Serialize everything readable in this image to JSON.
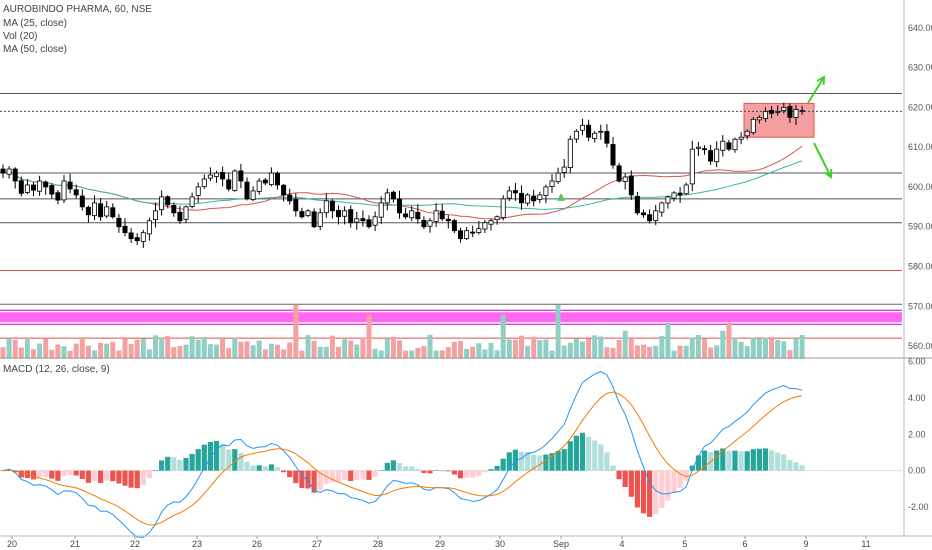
{
  "header": {
    "symbol_line": "AUROBINDO PHARMA, 60, NSE",
    "indicators": [
      "MA (25, close)",
      "Vol (20)",
      "MA (50, close)"
    ]
  },
  "macd": {
    "label": "MACD (12, 26, close, 9)"
  },
  "colors": {
    "up_candle": "#ffffff",
    "down_candle": "#000000",
    "ma25": "#d9534f",
    "ma50": "#3bb59d",
    "vol_up": "#8fcfc4",
    "vol_down": "#f4a1a1",
    "macd_line": "#2196f3",
    "signal_line": "#f57c00",
    "hist_pos_strong": "#26a69a",
    "hist_pos_weak": "#b2dfdb",
    "hist_neg_strong": "#ef5350",
    "hist_neg_weak": "#ffcdd2",
    "zone_box": "#f08080",
    "magenta_band": "#ff44ee",
    "arrow": "#3fd12a",
    "signal_marker": "#56c65a"
  },
  "chart_data": [
    {
      "type": "candlestick",
      "title": "AUROBINDO PHARMA, 60, NSE",
      "x_labels": [
        "20",
        "21",
        "22",
        "23",
        "26",
        "27",
        "28",
        "29",
        "30",
        "Sep",
        "4",
        "5",
        "6",
        "9",
        "11"
      ],
      "ylim": [
        557,
        647
      ],
      "y_ticks": [
        560,
        570,
        580,
        590,
        600,
        610,
        620,
        630,
        640
      ],
      "y_tick_labels": [
        "560.00",
        "570.00",
        "580.00",
        "590.00",
        "600.00",
        "610.00",
        "620.00",
        "630.00",
        "640.00"
      ],
      "closes": [
        603.5,
        604.5,
        601.5,
        598.4,
        600.5,
        599.2,
        601.5,
        600.0,
        598.2,
        596.7,
        601.5,
        599.5,
        598.0,
        595.0,
        593.0,
        596.0,
        592.5,
        595.0,
        592.5,
        590.0,
        588.5,
        587.0,
        586.5,
        588.5,
        591.5,
        594.0,
        597.5,
        595.5,
        593.5,
        591.5,
        595.0,
        597.5,
        600.0,
        602.0,
        603.0,
        603.5,
        602.0,
        599.5,
        604.0,
        601.5,
        597.0,
        599.0,
        601.5,
        601.0,
        603.5,
        600.5,
        598.0,
        596.5,
        594.0,
        592.5,
        594.0,
        590.0,
        593.5,
        596.5,
        594.0,
        592.5,
        594.0,
        591.0,
        592.0,
        591.5,
        590.0,
        592.5,
        596.0,
        598.5,
        597.0,
        593.5,
        592.5,
        594.0,
        592.0,
        590.0,
        591.5,
        594.0,
        592.0,
        591.5,
        589.0,
        587.0,
        589.0,
        588.5,
        589.5,
        591.0,
        591.5,
        592.5,
        597.0,
        599.0,
        598.5,
        596.0,
        598.0,
        596.5,
        598.0,
        600.0,
        601.5,
        603.5,
        605.0,
        612.0,
        614.0,
        615.5,
        612.5,
        613.5,
        614.0,
        611.0,
        605.5,
        601.5,
        602.5,
        598.0,
        593.5,
        593.0,
        591.5,
        594.0,
        596.0,
        597.5,
        598.5,
        598.0,
        600.5,
        609.5,
        610.0,
        609.5,
        606.5,
        609.5,
        611.5,
        609.5,
        612.0,
        612.5,
        614.0,
        617.0,
        617.5,
        619.0,
        618.5,
        619.0,
        620.0,
        617.5,
        619.5,
        619.2
      ],
      "zone_box": {
        "y_low": 612.5,
        "y_high": 621.0
      },
      "horizontal_levels": {
        "dark_gray": [
          623.5,
          603.5,
          597.0,
          591.0
        ],
        "dotted": [
          619.0
        ],
        "red": [
          579.0,
          562.0
        ],
        "gray": [
          570.5
        ]
      },
      "magenta_band": {
        "y_low": 566.0,
        "y_high": 568.5
      },
      "overlays": [
        {
          "name": "MA (25, close)",
          "color": "#d9534f"
        },
        {
          "name": "MA (50, close)",
          "color": "#3bb59d"
        }
      ],
      "volume_indicator": "Vol (20)"
    },
    {
      "type": "line",
      "title": "MACD (12, 26, close, 9)",
      "ylim": [
        -3.6,
        6.2
      ],
      "y_ticks": [
        -2,
        0,
        2,
        4,
        6
      ],
      "y_tick_labels": [
        "-2.00",
        "0.00",
        "2.00",
        "4.00",
        "6.00"
      ],
      "series": [
        {
          "name": "MACD"
        },
        {
          "name": "Signal"
        },
        {
          "name": "Histogram",
          "type": "bar"
        }
      ]
    }
  ]
}
